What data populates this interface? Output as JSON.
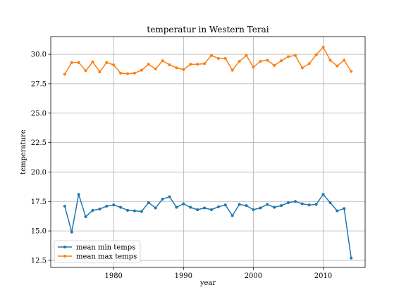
{
  "chart_data": {
    "type": "line",
    "title": "temperatur in Western Terai",
    "xlabel": "year",
    "ylabel": "temperature",
    "xlim": [
      1971,
      2016
    ],
    "ylim": [
      11.9,
      31.5
    ],
    "xticks": [
      1980,
      1990,
      2000,
      2010
    ],
    "yticks": [
      12.5,
      15.0,
      17.5,
      20.0,
      22.5,
      25.0,
      27.5,
      30.0
    ],
    "ytick_labels": [
      "12.5",
      "15.0",
      "17.5",
      "20.0",
      "22.5",
      "25.0",
      "27.5",
      "30.0"
    ],
    "grid": true,
    "legend_position": "lower-left",
    "x": [
      1973,
      1974,
      1975,
      1976,
      1977,
      1978,
      1979,
      1980,
      1981,
      1982,
      1983,
      1984,
      1985,
      1986,
      1987,
      1988,
      1989,
      1990,
      1991,
      1992,
      1993,
      1994,
      1995,
      1996,
      1997,
      1998,
      1999,
      2000,
      2001,
      2002,
      2003,
      2004,
      2005,
      2006,
      2007,
      2008,
      2009,
      2010,
      2011,
      2012,
      2013,
      2014
    ],
    "series": [
      {
        "name": "mean min temps",
        "color": "#1f77b4",
        "values": [
          17.1,
          14.9,
          18.1,
          16.2,
          16.75,
          16.85,
          17.1,
          17.2,
          17.0,
          16.75,
          16.7,
          16.65,
          17.4,
          16.95,
          17.7,
          17.9,
          17.0,
          17.3,
          17.0,
          16.8,
          16.95,
          16.8,
          17.05,
          17.2,
          16.3,
          17.25,
          17.15,
          16.8,
          16.95,
          17.25,
          17.0,
          17.15,
          17.4,
          17.5,
          17.3,
          17.2,
          17.25,
          18.1,
          17.4,
          16.7,
          16.9,
          12.7
        ]
      },
      {
        "name": "mean max temps",
        "color": "#ff7f0e",
        "values": [
          28.3,
          29.3,
          29.3,
          28.6,
          29.35,
          28.5,
          29.3,
          29.1,
          28.4,
          28.35,
          28.4,
          28.65,
          29.15,
          28.75,
          29.45,
          29.1,
          28.85,
          28.7,
          29.15,
          29.15,
          29.2,
          29.9,
          29.65,
          29.65,
          28.65,
          29.4,
          29.9,
          28.9,
          29.4,
          29.5,
          29.05,
          29.45,
          29.8,
          29.9,
          28.85,
          29.2,
          29.95,
          30.6,
          29.5,
          29.0,
          29.5,
          28.55
        ]
      }
    ]
  }
}
